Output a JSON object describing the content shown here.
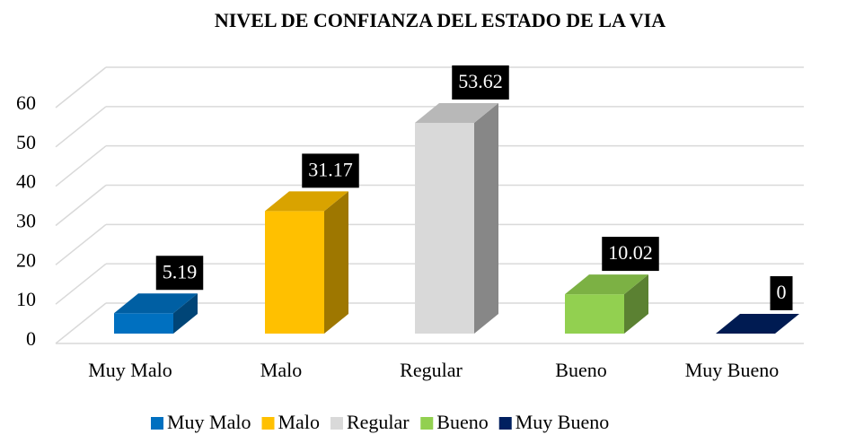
{
  "chart_data": {
    "type": "bar3d",
    "title": "NIVEL DE CONFIANZA DEL ESTADO DE LA VIA",
    "categories": [
      "Muy Malo",
      "Malo",
      "Regular",
      "Bueno",
      "Muy Bueno"
    ],
    "values": [
      5.19,
      31.17,
      53.62,
      10.02,
      0
    ],
    "colors": [
      "#0070c0",
      "#ffc000",
      "#d9d9d9",
      "#92d050",
      "#002060"
    ],
    "ylim": [
      0,
      60
    ],
    "yticks": [
      0,
      10,
      20,
      30,
      40,
      50,
      60
    ],
    "grid": true,
    "legend": "bottom"
  }
}
